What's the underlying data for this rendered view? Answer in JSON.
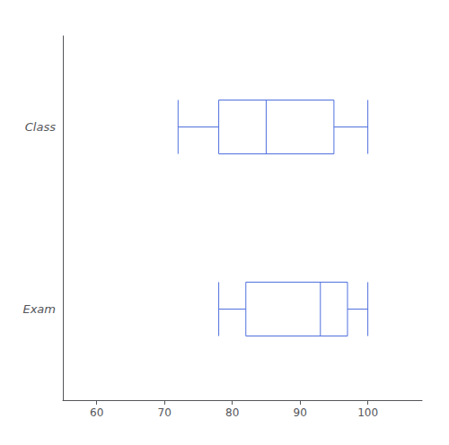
{
  "chart_data": {
    "type": "boxplot",
    "orientation": "horizontal",
    "categories": [
      "Class",
      "Exam"
    ],
    "values": [
      [
        72,
        78,
        85,
        95,
        100
      ],
      [
        78,
        82,
        93,
        97,
        100
      ]
    ],
    "xlim": [
      55,
      108
    ],
    "xticks": [
      60,
      70,
      80,
      90,
      100
    ],
    "grid": false
  }
}
